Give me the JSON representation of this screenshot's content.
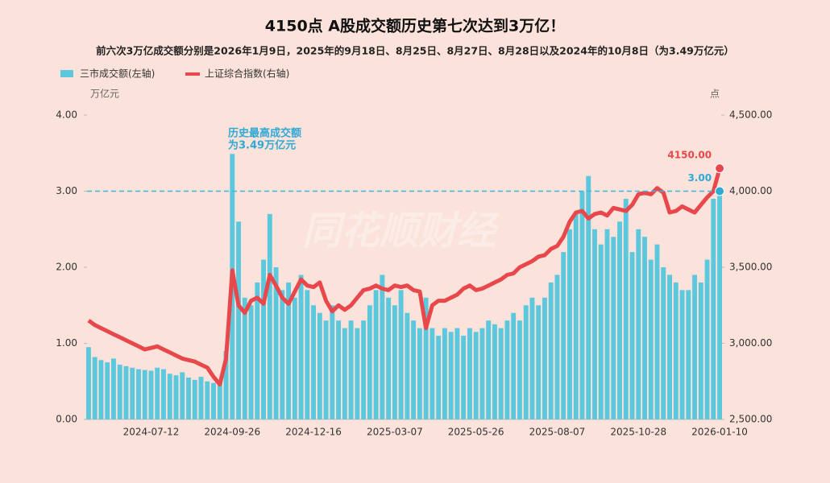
{
  "chart_data": {
    "type": "bar_line",
    "title": "4150点 A股成交额历史第七次达到3万亿！",
    "subtitle": "前六次3万亿成交额分别是2026年1月9日，2025年的9月18日、8月25日、8月27日、8月28日以及2024年的10月8日（为3.49万亿元）",
    "y_unit": "万亿元",
    "y2_unit": "点",
    "watermark": "同花顺财经",
    "annotation": [
      "历史最高成交额",
      "为3.49万亿元"
    ],
    "reference_line": 3,
    "categories": [
      null,
      null,
      null,
      null,
      null,
      null,
      null,
      null,
      null,
      null,
      "2024-07-12",
      null,
      null,
      null,
      null,
      null,
      null,
      null,
      null,
      null,
      null,
      null,
      null,
      "2024-09-26",
      null,
      null,
      null,
      null,
      null,
      null,
      null,
      null,
      null,
      null,
      null,
      null,
      "2024-12-16",
      null,
      null,
      null,
      null,
      null,
      null,
      null,
      null,
      null,
      null,
      null,
      null,
      "2025-03-07",
      null,
      null,
      null,
      null,
      null,
      null,
      null,
      null,
      null,
      null,
      null,
      null,
      "2025-05-26",
      null,
      null,
      null,
      null,
      null,
      null,
      null,
      null,
      null,
      null,
      null,
      null,
      "2025-08-07",
      null,
      null,
      null,
      null,
      null,
      null,
      null,
      null,
      null,
      null,
      null,
      null,
      "2025-10-28",
      null,
      null,
      null,
      null,
      null,
      null,
      null,
      null,
      null,
      null,
      null,
      null,
      "2026-01-10"
    ],
    "series": [
      {
        "name": "三市成交额(左轴)",
        "color": "#5cc8de",
        "type": "bar",
        "axis": "y",
        "values": [
          0.95,
          0.82,
          0.78,
          0.75,
          0.8,
          0.72,
          0.7,
          0.68,
          0.66,
          0.65,
          0.64,
          0.68,
          0.66,
          0.6,
          0.58,
          0.62,
          0.55,
          0.52,
          0.56,
          0.5,
          0.48,
          0.52,
          0.9,
          3.49,
          2.6,
          1.6,
          1.5,
          1.8,
          2.1,
          2.7,
          2.0,
          1.7,
          1.8,
          1.6,
          1.9,
          1.7,
          1.5,
          1.4,
          1.3,
          1.5,
          1.3,
          1.2,
          1.3,
          1.2,
          1.3,
          1.5,
          1.7,
          1.9,
          1.6,
          1.5,
          1.7,
          1.4,
          1.3,
          1.2,
          1.6,
          1.2,
          1.1,
          1.2,
          1.15,
          1.2,
          1.1,
          1.2,
          1.15,
          1.2,
          1.3,
          1.25,
          1.2,
          1.3,
          1.4,
          1.3,
          1.5,
          1.6,
          1.5,
          1.6,
          1.8,
          1.9,
          2.2,
          2.5,
          2.7,
          3.0,
          3.2,
          2.5,
          2.3,
          2.5,
          2.4,
          2.6,
          2.9,
          2.2,
          2.5,
          2.4,
          2.1,
          2.3,
          2.0,
          1.9,
          1.8,
          1.7,
          1.7,
          1.9,
          1.8,
          2.1,
          2.9,
          3.0
        ],
        "value_labels": [
          null,
          null,
          null,
          null,
          null,
          null,
          null,
          null,
          null,
          null,
          null,
          null,
          null,
          null,
          null,
          null,
          null,
          null,
          null,
          null,
          null,
          null,
          null,
          null,
          null,
          null,
          null,
          null,
          null,
          null,
          null,
          null,
          null,
          null,
          null,
          null,
          null,
          null,
          null,
          null,
          null,
          null,
          null,
          null,
          null,
          null,
          null,
          null,
          null,
          null,
          null,
          null,
          null,
          null,
          null,
          null,
          null,
          null,
          null,
          null,
          null,
          null,
          null,
          null,
          null,
          null,
          null,
          null,
          null,
          null,
          null,
          null,
          null,
          null,
          null,
          null,
          null,
          null,
          null,
          null,
          null,
          null,
          null,
          null,
          null,
          null,
          null,
          null,
          null,
          null,
          null,
          null,
          null,
          null,
          null,
          null,
          null,
          null,
          null,
          null,
          null,
          "3.00"
        ]
      },
      {
        "name": "上证综合指数(右轴)",
        "color": "#e8474b",
        "type": "line",
        "axis": "y2",
        "values": [
          3150,
          3120,
          3100,
          3080,
          3060,
          3040,
          3020,
          3000,
          2980,
          2960,
          2970,
          2980,
          2960,
          2940,
          2920,
          2900,
          2890,
          2880,
          2860,
          2840,
          2780,
          2730,
          2900,
          3480,
          3250,
          3200,
          3280,
          3300,
          3260,
          3450,
          3380,
          3300,
          3260,
          3340,
          3420,
          3380,
          3370,
          3400,
          3280,
          3210,
          3250,
          3220,
          3250,
          3300,
          3350,
          3360,
          3380,
          3360,
          3350,
          3380,
          3370,
          3380,
          3350,
          3340,
          3100,
          3250,
          3280,
          3280,
          3300,
          3320,
          3360,
          3380,
          3350,
          3360,
          3380,
          3400,
          3420,
          3450,
          3460,
          3500,
          3520,
          3540,
          3570,
          3580,
          3620,
          3640,
          3700,
          3800,
          3860,
          3870,
          3820,
          3850,
          3860,
          3840,
          3890,
          3880,
          3870,
          3910,
          3980,
          3990,
          3980,
          4020,
          3990,
          3860,
          3870,
          3900,
          3880,
          3860,
          3910,
          3960,
          4000,
          4150
        ],
        "value_labels": [
          null,
          null,
          null,
          null,
          null,
          null,
          null,
          null,
          null,
          null,
          null,
          null,
          null,
          null,
          null,
          null,
          null,
          null,
          null,
          null,
          null,
          null,
          null,
          null,
          null,
          null,
          null,
          null,
          null,
          null,
          null,
          null,
          null,
          null,
          null,
          null,
          null,
          null,
          null,
          null,
          null,
          null,
          null,
          null,
          null,
          null,
          null,
          null,
          null,
          null,
          null,
          null,
          null,
          null,
          null,
          null,
          null,
          null,
          null,
          null,
          null,
          null,
          null,
          null,
          null,
          null,
          null,
          null,
          null,
          null,
          null,
          null,
          null,
          null,
          null,
          null,
          null,
          null,
          null,
          null,
          null,
          null,
          null,
          null,
          null,
          null,
          null,
          null,
          null,
          null,
          null,
          null,
          null,
          null,
          null,
          null,
          null,
          null,
          null,
          null,
          null,
          "4150.00"
        ]
      }
    ],
    "ylim": [
      0,
      4
    ],
    "yticks": [
      {
        "value": 0,
        "label": "0.00"
      },
      {
        "value": 1,
        "label": "1.00"
      },
      {
        "value": 2,
        "label": "2.00"
      },
      {
        "value": 3,
        "label": "3.00"
      },
      {
        "value": 4,
        "label": "4.00"
      }
    ],
    "y2lim": [
      2500,
      4500
    ],
    "y2ticks": [
      {
        "value": 2500,
        "label": "2,500.00"
      },
      {
        "value": 3000,
        "label": "3,000.00"
      },
      {
        "value": 3500,
        "label": "3,500.00"
      },
      {
        "value": 4000,
        "label": "4,000.00"
      },
      {
        "value": 4500,
        "label": "4,500.00"
      }
    ],
    "legend": "top-left"
  }
}
